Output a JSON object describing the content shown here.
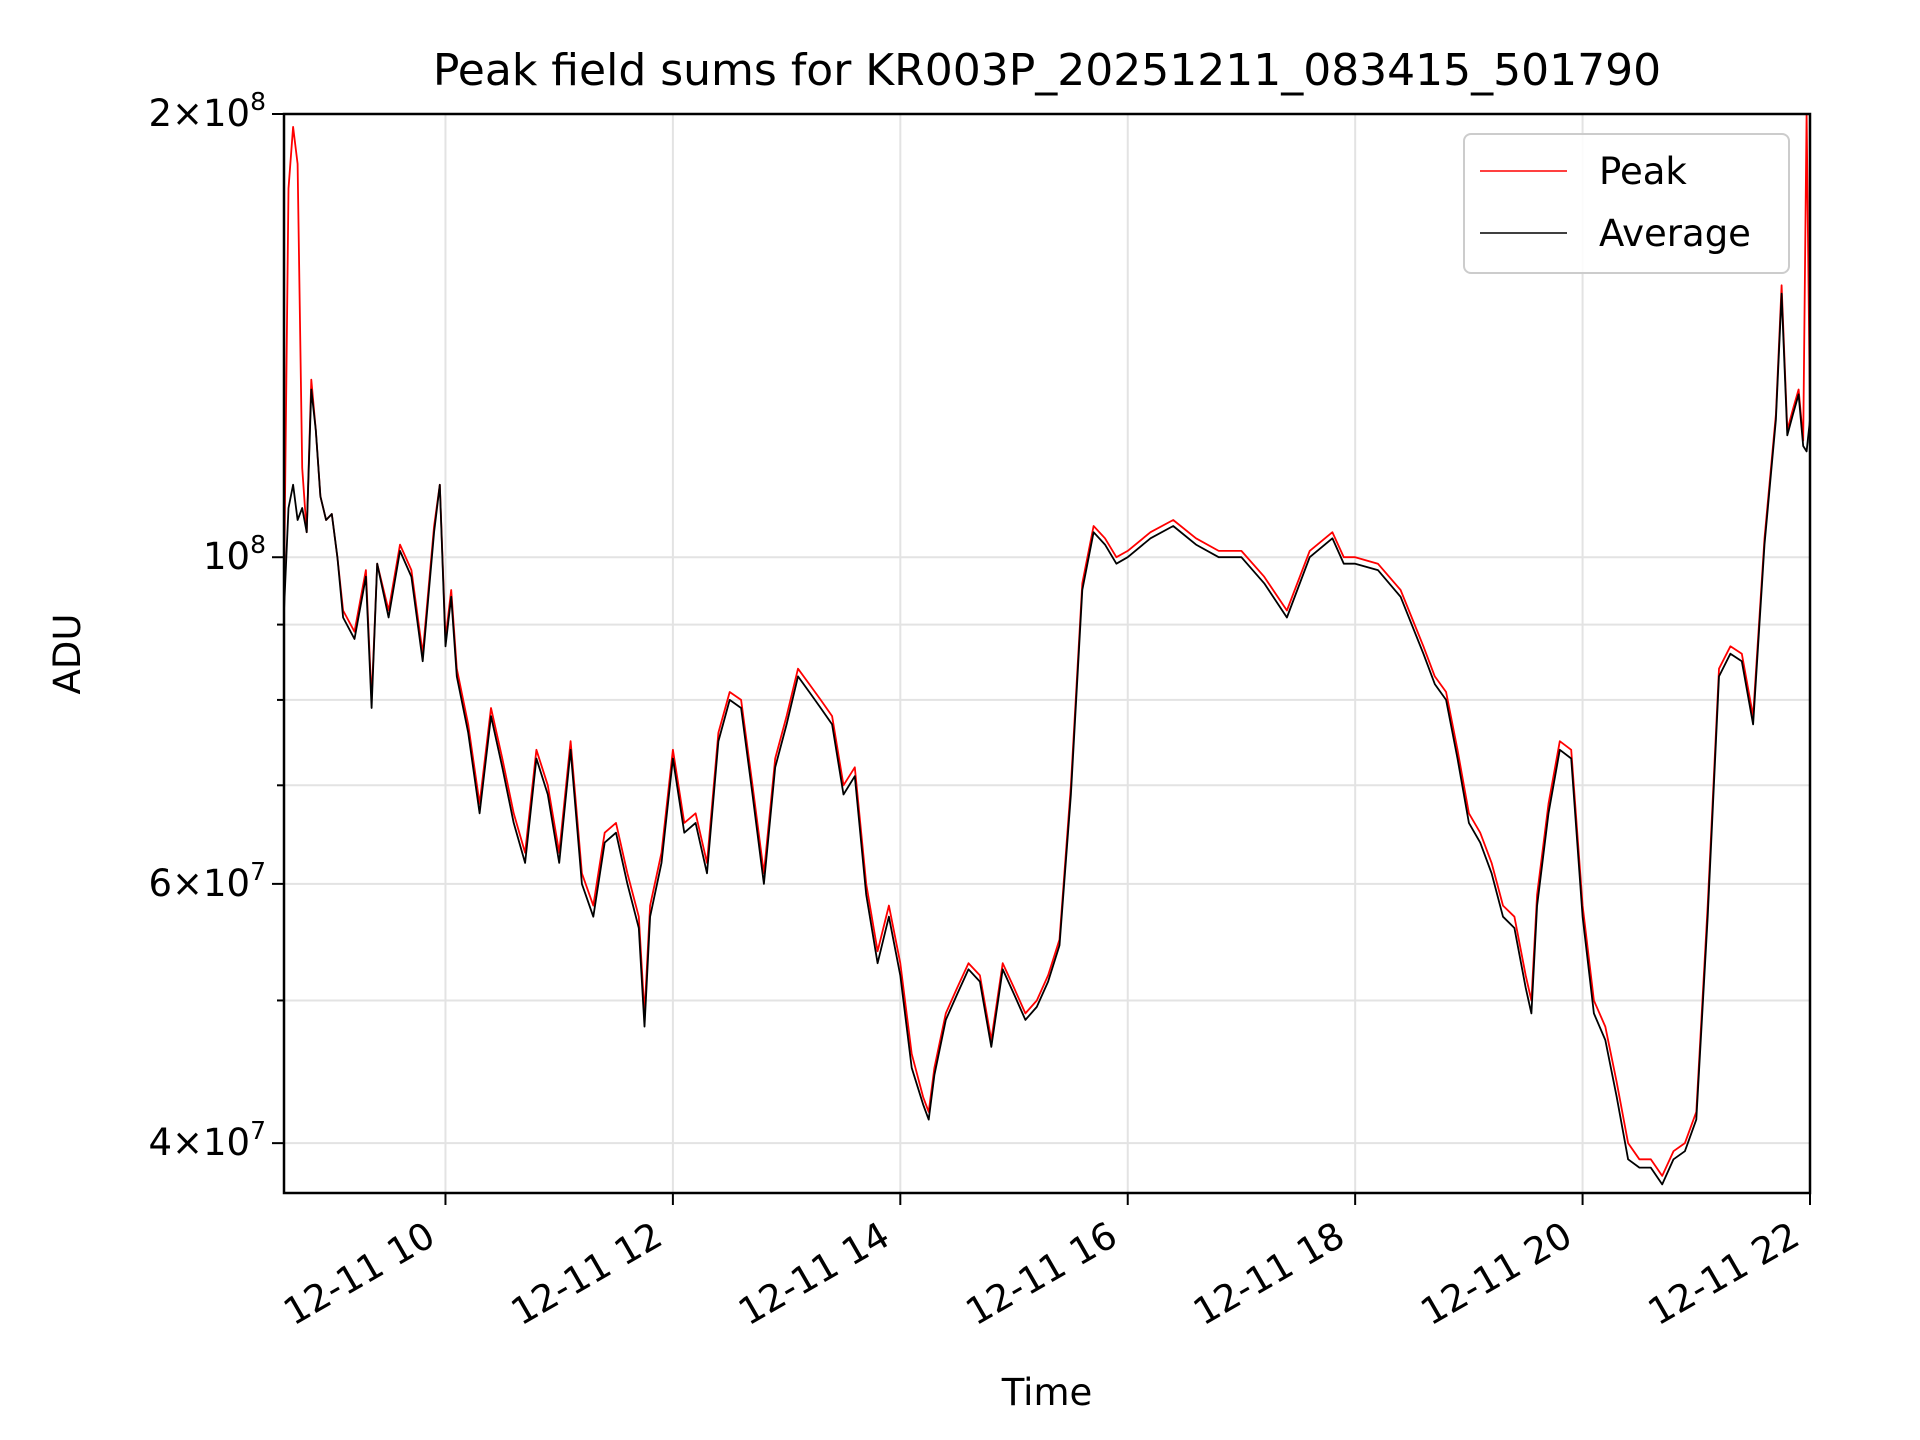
{
  "chart_data": {
    "type": "line",
    "title": "Peak field sums for KR003P_20251211_083415_501790",
    "xlabel": "Time",
    "ylabel": "ADU",
    "yscale": "log",
    "ylim": [
      37000000,
      200000000
    ],
    "xlim": [
      8.58,
      22.0
    ],
    "x_ticks": [
      {
        "value": 10,
        "label": "12-11 10"
      },
      {
        "value": 12,
        "label": "12-11 12"
      },
      {
        "value": 14,
        "label": "12-11 14"
      },
      {
        "value": 16,
        "label": "12-11 16"
      },
      {
        "value": 18,
        "label": "12-11 18"
      },
      {
        "value": 20,
        "label": "12-11 20"
      },
      {
        "value": 22,
        "label": "12-11 22"
      }
    ],
    "y_ticks": [
      {
        "value": 40000000,
        "mant": "4",
        "exp": "7"
      },
      {
        "value": 60000000,
        "mant": "6",
        "exp": "7"
      },
      {
        "value": 100000000,
        "mant": "",
        "exp": "8"
      },
      {
        "value": 200000000,
        "mant": "2",
        "exp": "8"
      }
    ],
    "y_minor_ticks": [
      50000000,
      70000000,
      80000000,
      90000000
    ],
    "grid": true,
    "legend_position": "top-right",
    "x_unit": "hour of day 2025-12-11",
    "series": [
      {
        "name": "Peak",
        "color": "#ff0000",
        "x": [
          8.58,
          8.62,
          8.66,
          8.7,
          8.74,
          8.78,
          8.82,
          8.86,
          8.9,
          8.95,
          9.0,
          9.05,
          9.1,
          9.2,
          9.3,
          9.35,
          9.4,
          9.5,
          9.6,
          9.7,
          9.8,
          9.9,
          9.95,
          10.0,
          10.05,
          10.1,
          10.2,
          10.3,
          10.4,
          10.5,
          10.6,
          10.7,
          10.8,
          10.9,
          11.0,
          11.1,
          11.2,
          11.3,
          11.4,
          11.5,
          11.6,
          11.7,
          11.75,
          11.8,
          11.9,
          12.0,
          12.1,
          12.2,
          12.3,
          12.4,
          12.5,
          12.6,
          12.7,
          12.8,
          12.9,
          13.0,
          13.1,
          13.2,
          13.3,
          13.4,
          13.5,
          13.6,
          13.7,
          13.8,
          13.9,
          14.0,
          14.1,
          14.2,
          14.25,
          14.3,
          14.4,
          14.5,
          14.6,
          14.7,
          14.8,
          14.9,
          15.0,
          15.1,
          15.2,
          15.3,
          15.4,
          15.5,
          15.6,
          15.7,
          15.8,
          15.9,
          16.0,
          16.2,
          16.4,
          16.6,
          16.8,
          17.0,
          17.2,
          17.4,
          17.6,
          17.8,
          17.9,
          18.0,
          18.2,
          18.4,
          18.6,
          18.7,
          18.8,
          18.9,
          19.0,
          19.1,
          19.2,
          19.3,
          19.4,
          19.5,
          19.55,
          19.6,
          19.7,
          19.8,
          19.9,
          20.0,
          20.1,
          20.2,
          20.3,
          20.4,
          20.5,
          20.6,
          20.7,
          20.8,
          20.9,
          21.0,
          21.1,
          21.2,
          21.3,
          21.4,
          21.5,
          21.6,
          21.7,
          21.75,
          21.8,
          21.85,
          21.9,
          21.94,
          21.97,
          22.0
        ],
        "y": [
          95000000,
          178000000,
          196000000,
          185000000,
          115000000,
          104000000,
          132000000,
          122000000,
          110000000,
          106000000,
          107000000,
          100000000,
          92000000,
          89000000,
          98000000,
          80000000,
          99000000,
          92000000,
          102000000,
          98000000,
          86000000,
          105000000,
          112000000,
          88000000,
          95000000,
          84000000,
          77000000,
          68000000,
          79000000,
          73000000,
          67000000,
          63000000,
          74000000,
          70000000,
          63000000,
          75000000,
          61000000,
          58000000,
          65000000,
          66000000,
          61000000,
          57000000,
          49000000,
          58000000,
          63000000,
          74000000,
          66000000,
          67000000,
          62000000,
          76000000,
          81000000,
          80000000,
          70000000,
          61000000,
          73000000,
          78000000,
          84000000,
          82000000,
          80000000,
          78000000,
          70000000,
          72000000,
          60000000,
          54000000,
          58000000,
          53000000,
          46000000,
          43000000,
          42000000,
          45000000,
          49000000,
          51000000,
          53000000,
          52000000,
          47000000,
          53000000,
          51000000,
          49000000,
          50000000,
          52000000,
          55000000,
          70000000,
          96000000,
          105000000,
          103000000,
          100000000,
          101000000,
          104000000,
          106000000,
          103000000,
          101000000,
          101000000,
          97000000,
          92000000,
          101000000,
          104000000,
          100000000,
          100000000,
          99000000,
          95000000,
          87000000,
          83000000,
          81000000,
          74000000,
          67000000,
          65000000,
          62000000,
          58000000,
          57000000,
          52000000,
          50000000,
          59000000,
          68000000,
          75000000,
          74000000,
          58000000,
          50000000,
          48000000,
          44000000,
          40000000,
          39000000,
          39000000,
          38000000,
          39500000,
          40000000,
          42000000,
          58000000,
          84000000,
          87000000,
          86000000,
          78000000,
          103000000,
          125000000,
          153000000,
          122000000,
          126000000,
          130000000,
          120000000,
          200000000,
          125000000
        ]
      },
      {
        "name": "Average",
        "color": "#000000",
        "x": [
          8.58,
          8.62,
          8.66,
          8.7,
          8.74,
          8.78,
          8.82,
          8.86,
          8.9,
          8.95,
          9.0,
          9.05,
          9.1,
          9.2,
          9.3,
          9.35,
          9.4,
          9.5,
          9.6,
          9.7,
          9.8,
          9.9,
          9.95,
          10.0,
          10.05,
          10.1,
          10.2,
          10.3,
          10.4,
          10.5,
          10.6,
          10.7,
          10.8,
          10.9,
          11.0,
          11.1,
          11.2,
          11.3,
          11.4,
          11.5,
          11.6,
          11.7,
          11.75,
          11.8,
          11.9,
          12.0,
          12.1,
          12.2,
          12.3,
          12.4,
          12.5,
          12.6,
          12.7,
          12.8,
          12.9,
          13.0,
          13.1,
          13.2,
          13.3,
          13.4,
          13.5,
          13.6,
          13.7,
          13.8,
          13.9,
          14.0,
          14.1,
          14.2,
          14.25,
          14.3,
          14.4,
          14.5,
          14.6,
          14.7,
          14.8,
          14.9,
          15.0,
          15.1,
          15.2,
          15.3,
          15.4,
          15.5,
          15.6,
          15.7,
          15.8,
          15.9,
          16.0,
          16.2,
          16.4,
          16.6,
          16.8,
          17.0,
          17.2,
          17.4,
          17.6,
          17.8,
          17.9,
          18.0,
          18.2,
          18.4,
          18.6,
          18.7,
          18.8,
          18.9,
          19.0,
          19.1,
          19.2,
          19.3,
          19.4,
          19.5,
          19.55,
          19.6,
          19.7,
          19.8,
          19.9,
          20.0,
          20.1,
          20.2,
          20.3,
          20.4,
          20.5,
          20.6,
          20.7,
          20.8,
          20.9,
          21.0,
          21.1,
          21.2,
          21.3,
          21.4,
          21.5,
          21.6,
          21.7,
          21.75,
          21.8,
          21.85,
          21.9,
          21.94,
          21.97,
          22.0
        ],
        "y": [
          92000000,
          108000000,
          112000000,
          106000000,
          108000000,
          104000000,
          130000000,
          122000000,
          110000000,
          106000000,
          107000000,
          100000000,
          91000000,
          88000000,
          97000000,
          79000000,
          99000000,
          91000000,
          101000000,
          97000000,
          85000000,
          104000000,
          112000000,
          87000000,
          94000000,
          83000000,
          76000000,
          67000000,
          78000000,
          72000000,
          66000000,
          62000000,
          73000000,
          69000000,
          62000000,
          74000000,
          60000000,
          57000000,
          64000000,
          65000000,
          60000000,
          56000000,
          48000000,
          57000000,
          62000000,
          73000000,
          65000000,
          66000000,
          61000000,
          75000000,
          80000000,
          79000000,
          69000000,
          60000000,
          72000000,
          77000000,
          83000000,
          81000000,
          79000000,
          77000000,
          69000000,
          71000000,
          59000000,
          53000000,
          57000000,
          52000000,
          45000000,
          42500000,
          41500000,
          44500000,
          48500000,
          50500000,
          52500000,
          51500000,
          46500000,
          52500000,
          50500000,
          48500000,
          49500000,
          51500000,
          54500000,
          69000000,
          95000000,
          104000000,
          102000000,
          99000000,
          100000000,
          103000000,
          105000000,
          102000000,
          100000000,
          100000000,
          96000000,
          91000000,
          100000000,
          103000000,
          99000000,
          99000000,
          98000000,
          94000000,
          86000000,
          82000000,
          80000000,
          73000000,
          66000000,
          64000000,
          61000000,
          57000000,
          56000000,
          51000000,
          49000000,
          58000000,
          67000000,
          74000000,
          73000000,
          57000000,
          49000000,
          47000000,
          43000000,
          39000000,
          38500000,
          38500000,
          37500000,
          39000000,
          39500000,
          41500000,
          57000000,
          83000000,
          86000000,
          85000000,
          77000000,
          102000000,
          124000000,
          151000000,
          121000000,
          125000000,
          129000000,
          119000000,
          118000000,
          124000000
        ]
      }
    ]
  }
}
